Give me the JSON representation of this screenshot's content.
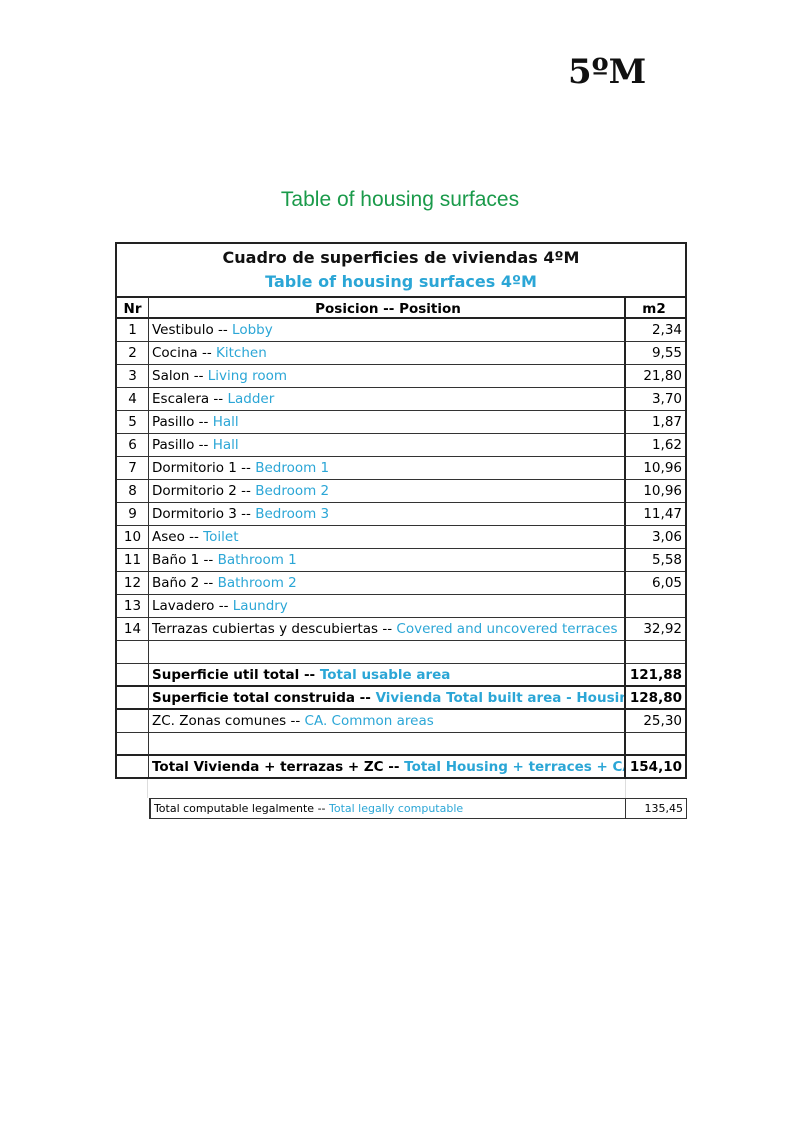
{
  "corner_label": "5ºM",
  "doc_title": "Table of housing surfaces",
  "table": {
    "title_es": "Cuadro de superficies de viviendas 4ºM",
    "title_en": "Table of housing surfaces 4ºM",
    "headers": {
      "nr": "Nr",
      "position": "Posicion -- Position",
      "m2": "m2"
    },
    "rows": [
      {
        "nr": "1",
        "es": "Vestibulo -- ",
        "en": "Lobby",
        "m2": "2,34"
      },
      {
        "nr": "2",
        "es": "Cocina --  ",
        "en": "Kitchen",
        "m2": "9,55"
      },
      {
        "nr": "3",
        "es": "Salon -- ",
        "en": "Living room",
        "m2": "21,80"
      },
      {
        "nr": "4",
        "es": "Escalera -- ",
        "en": "Ladder",
        "m2": "3,70"
      },
      {
        "nr": "5",
        "es": "Pasillo -- ",
        "en": "Hall",
        "m2": "1,87"
      },
      {
        "nr": "6",
        "es": "Pasillo -- ",
        "en": "Hall",
        "m2": "1,62"
      },
      {
        "nr": "7",
        "es": "Dormitorio 1 -- ",
        "en": "Bedroom 1",
        "m2": "10,96"
      },
      {
        "nr": "8",
        "es": "Dormitorio 2 -- ",
        "en": "Bedroom 2",
        "m2": "10,96"
      },
      {
        "nr": "9",
        "es": "Dormitorio 3 -- ",
        "en": "Bedroom 3",
        "m2": "11,47"
      },
      {
        "nr": "10",
        "es": "Aseo -- ",
        "en": "Toilet",
        "m2": "3,06"
      },
      {
        "nr": "11",
        "es": "Baño 1 -- ",
        "en": "Bathroom 1",
        "m2": "5,58"
      },
      {
        "nr": "12",
        "es": "Baño 2 -- ",
        "en": "Bathroom 2",
        "m2": "6,05"
      },
      {
        "nr": "13",
        "es": "Lavadero -- ",
        "en": "Laundry",
        "m2": ""
      },
      {
        "nr": "14",
        "es": "Terrazas cubiertas y descubiertas -- ",
        "en": "Covered and uncovered terraces",
        "m2": "32,92"
      }
    ],
    "usable": {
      "es": "Superficie util total -- ",
      "en": "Total usable area",
      "m2": "121,88"
    },
    "built": {
      "es": "Superficie total construida -- ",
      "en": "Vivienda Total built area - Housing",
      "m2": "128,80"
    },
    "common": {
      "es": "ZC. Zonas comunes  -- ",
      "en": "CA. Common areas",
      "m2": "25,30"
    },
    "total": {
      "es": "Total Vivienda + terrazas + ZC  -- ",
      "en": "Total Housing + terraces + CA",
      "m2": "154,10"
    },
    "legal": {
      "es": "Total computable legalmente -- ",
      "en": "Total legally computable",
      "m2": "135,45"
    }
  }
}
